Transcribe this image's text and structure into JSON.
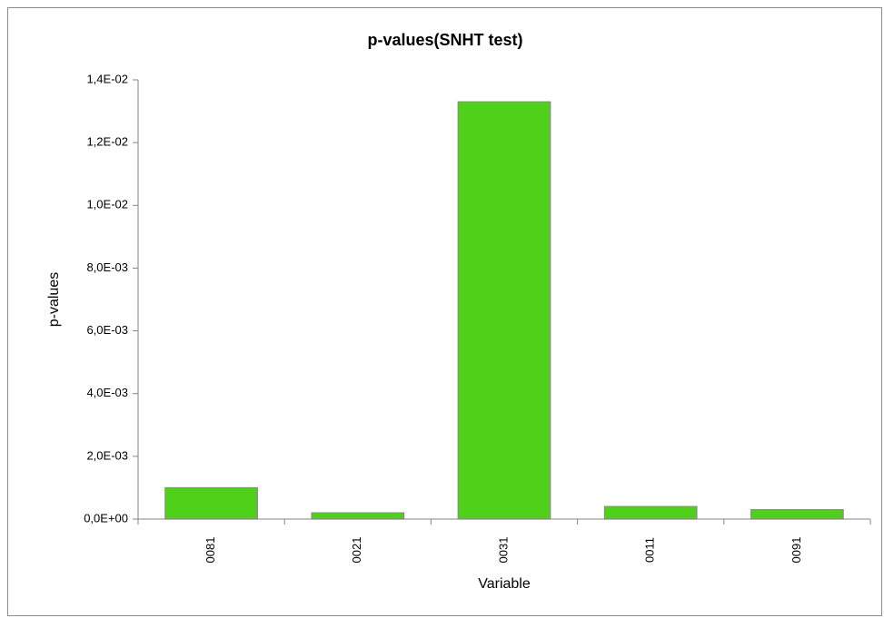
{
  "chart_data": {
    "type": "bar",
    "title": "p-values(SNHT test)",
    "x_label": "Variable",
    "y_label": "p-values",
    "categories": [
      "0081",
      "0021",
      "0031",
      "0011",
      "0091"
    ],
    "values": [
      0.001,
      0.0002,
      0.0133,
      0.0004,
      0.0003
    ],
    "color": "#4fd11a",
    "ylim": [
      0,
      0.014
    ],
    "yticks": [
      {
        "value": 0,
        "label": "0,0E+00"
      },
      {
        "value": 0.002,
        "label": "2,0E-03"
      },
      {
        "value": 0.004,
        "label": "4,0E-03"
      },
      {
        "value": 0.006,
        "label": "6,0E-03"
      },
      {
        "value": 0.008,
        "label": "8,0E-03"
      },
      {
        "value": 0.01,
        "label": "1,0E-02"
      },
      {
        "value": 0.012,
        "label": "1,2E-02"
      },
      {
        "value": 0.014,
        "label": "1,4E-02"
      }
    ],
    "grid": false
  }
}
